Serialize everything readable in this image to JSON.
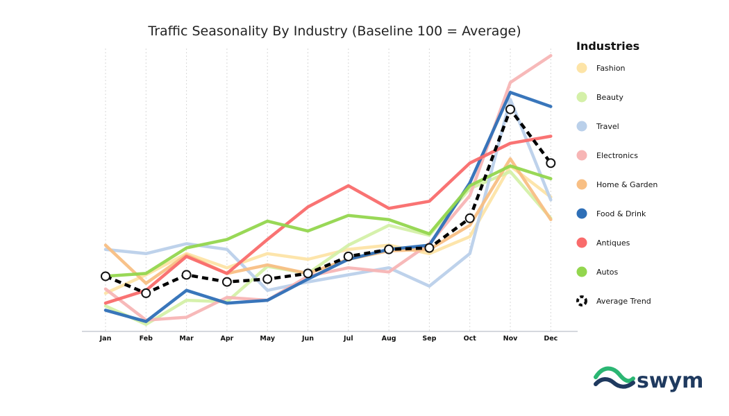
{
  "chart_data": {
    "type": "line",
    "title": "Traffic Seasonality By Industry (Baseline 100 = Average)",
    "xlabel": "",
    "ylabel": "",
    "categories": [
      "Jan",
      "Feb",
      "Mar",
      "Apr",
      "May",
      "Jun",
      "Jul",
      "Aug",
      "Sep",
      "Oct",
      "Nov",
      "Dec"
    ],
    "ylim": [
      45,
      245
    ],
    "grid": "vertical dotted",
    "legend_title": "Industries",
    "legend_position": "right",
    "series": [
      {
        "name": "Fashion",
        "color": "#fde4a7",
        "values": [
          72,
          85,
          100,
          90,
          100,
          96,
          103,
          106,
          100,
          112,
          162,
          140
        ]
      },
      {
        "name": "Beauty",
        "color": "#d4f0a8",
        "values": [
          63,
          50,
          67,
          66,
          91,
          86,
          106,
          120,
          113,
          146,
          158,
          125
        ]
      },
      {
        "name": "Travel",
        "color": "#bad0ea",
        "values": [
          103,
          100,
          107,
          103,
          74,
          80,
          85,
          90,
          77,
          100,
          209,
          138
        ]
      },
      {
        "name": "Electronics",
        "color": "#f7b5b5",
        "values": [
          75,
          53,
          55,
          69,
          67,
          84,
          90,
          87,
          107,
          141,
          221,
          240
        ]
      },
      {
        "name": "Home & Garden",
        "color": "#f8bf84",
        "values": [
          106,
          79,
          99,
          86,
          92,
          86,
          96,
          102,
          103,
          120,
          167,
          124
        ]
      },
      {
        "name": "Food & Drink",
        "color": "#2e6fb7",
        "values": [
          60,
          52,
          74,
          65,
          67,
          82,
          96,
          103,
          106,
          150,
          214,
          204
        ]
      },
      {
        "name": "Antiques",
        "color": "#f96b6b",
        "values": [
          65,
          74,
          98,
          86,
          110,
          133,
          148,
          132,
          137,
          164,
          178,
          183
        ]
      },
      {
        "name": "Autos",
        "color": "#93d64e",
        "values": [
          84,
          86,
          104,
          110,
          123,
          116,
          127,
          124,
          114,
          148,
          162,
          153
        ]
      },
      {
        "name": "Average Trend",
        "color": "#000000",
        "dashed": true,
        "markers": true,
        "values": [
          84,
          72,
          85,
          80,
          82,
          86,
          98,
          103,
          104,
          125,
          202,
          164
        ]
      }
    ]
  },
  "logo": {
    "text": "swym"
  }
}
